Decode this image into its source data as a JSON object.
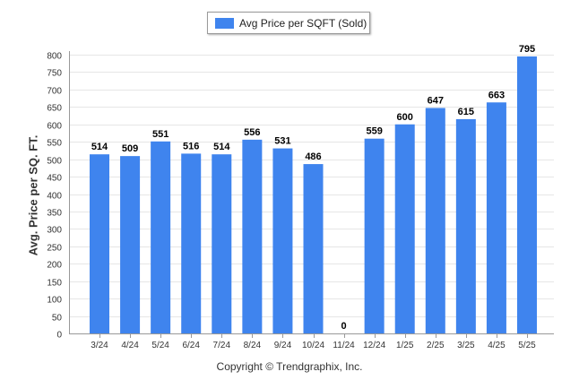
{
  "legend": {
    "label": "Avg Price per SQFT (Sold)"
  },
  "footer": {
    "copyright": "Copyright © Trendgraphix, Inc."
  },
  "colors": {
    "bar": "#3f84ee",
    "grid": "#e6e6e6",
    "axis": "#999999",
    "tick_text": "#333333",
    "value_text": "#000000"
  },
  "chart_data": {
    "type": "bar",
    "categories": [
      "3/24",
      "4/24",
      "5/24",
      "6/24",
      "7/24",
      "8/24",
      "9/24",
      "10/24",
      "11/24",
      "12/24",
      "1/25",
      "2/25",
      "3/25",
      "4/25",
      "5/25"
    ],
    "series": [
      {
        "name": "Avg Price per SQFT (Sold)",
        "values": [
          514,
          509,
          551,
          516,
          514,
          556,
          531,
          486,
          0,
          559,
          600,
          647,
          615,
          663,
          795
        ]
      }
    ],
    "ylabel": "Avg. Price per SQ. FT.",
    "ylim": [
      0,
      800
    ],
    "yticks": [
      0,
      50,
      100,
      150,
      200,
      250,
      300,
      350,
      400,
      450,
      500,
      550,
      600,
      650,
      700,
      750,
      800
    ],
    "grid": true,
    "legend_position": "top-center",
    "data_labels": true
  }
}
